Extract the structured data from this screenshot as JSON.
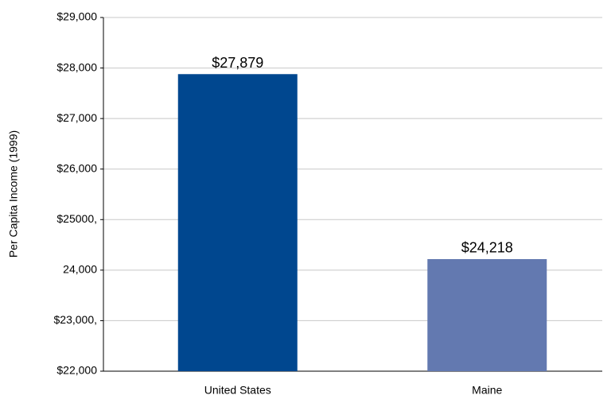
{
  "chart_data": {
    "type": "bar",
    "y_label": "Per Capita Income (1999)",
    "categories": [
      "United States",
      "Maine"
    ],
    "values": [
      27879,
      24218
    ],
    "value_labels": [
      "$27,879",
      "$24,218"
    ],
    "colors": [
      "#00478f",
      "#6379b0"
    ],
    "ylim": [
      22000,
      29000
    ],
    "yticks": [
      {
        "value": 22000,
        "label": "$22,000"
      },
      {
        "value": 23000,
        "label": "$23,000,"
      },
      {
        "value": 24000,
        "label": "24,000"
      },
      {
        "value": 25000,
        "label": "$25000,"
      },
      {
        "value": 26000,
        "label": "$26,000"
      },
      {
        "value": 27000,
        "label": "$27,000"
      },
      {
        "value": 28000,
        "label": "$28,000"
      },
      {
        "value": 29000,
        "label": "$29,000"
      }
    ],
    "grid": true
  }
}
